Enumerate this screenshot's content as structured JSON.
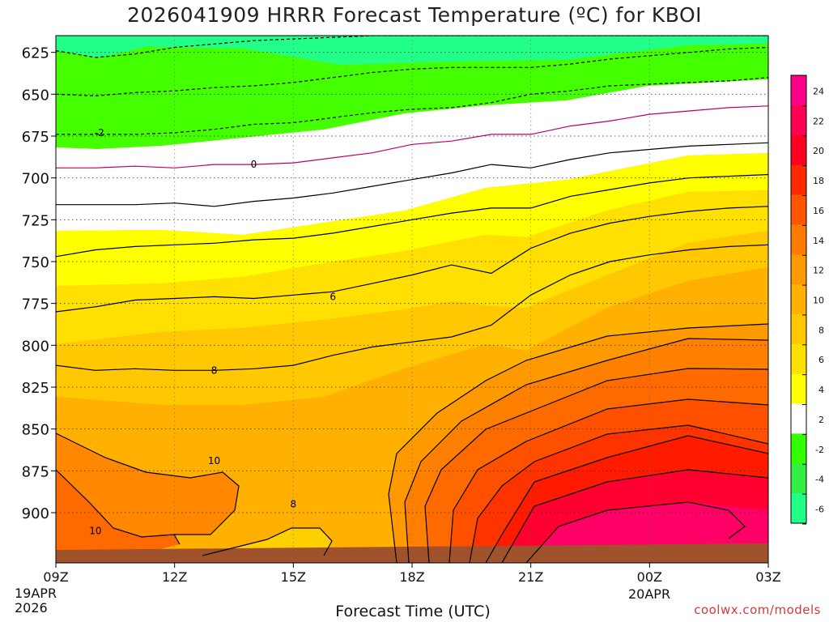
{
  "title": "2026041909 HRRR Forecast Temperature (ºC) for KBOI",
  "credit": "coolwx.com/models",
  "chart_data": {
    "type": "contour",
    "title": "2026041909 HRRR Forecast Temperature (ºC) for KBOI",
    "xlabel": "Forecast Time (UTC)",
    "ylabel": "Pressure (hPa)",
    "x_ticks": [
      "09Z",
      "12Z",
      "15Z",
      "18Z",
      "21Z",
      "00Z",
      "03Z"
    ],
    "x_hours": [
      0,
      3,
      6,
      9,
      12,
      15,
      18
    ],
    "x_date_left": [
      "19APR",
      "2026"
    ],
    "x_date_mid": "20APR",
    "y_ticks": [
      625,
      650,
      675,
      700,
      725,
      750,
      775,
      800,
      825,
      850,
      875,
      900
    ],
    "ylim": [
      615,
      930
    ],
    "colorbar_ticks": [
      24,
      22,
      20,
      18,
      16,
      14,
      12,
      10,
      8,
      6,
      4,
      2,
      -2,
      -4,
      -6
    ],
    "fill_colors": [
      "#ff0088",
      "#ff0055",
      "#ff0020",
      "#ff2a00",
      "#ff5500",
      "#ff7a00",
      "#ff9900",
      "#ffb000",
      "#ffc800",
      "#ffe000",
      "#ffff00",
      "#ffffff",
      "#33ff00",
      "#33ee44",
      "#22ff88"
    ],
    "contour_labels": [
      {
        "text": "-2",
        "hour": 1.1,
        "p": 673
      },
      {
        "text": "0",
        "hour": 5.0,
        "p": 692
      },
      {
        "text": "6",
        "hour": 7.0,
        "p": 771
      },
      {
        "text": "8",
        "hour": 4.0,
        "p": 815
      },
      {
        "text": "10",
        "hour": 4.0,
        "p": 869
      },
      {
        "text": "8",
        "hour": 6.0,
        "p": 895
      },
      {
        "text": "10",
        "hour": 1.0,
        "p": 911
      }
    ],
    "series": [
      {
        "name": "-4",
        "color": "#000000",
        "dashed": true,
        "hours": [
          0,
          1,
          2,
          3,
          4,
          5,
          6,
          7,
          8,
          9,
          10,
          11,
          12,
          13,
          14,
          15,
          16,
          17,
          18
        ],
        "p": [
          624,
          628,
          626,
          622,
          620,
          618,
          617,
          616,
          615,
          615,
          615,
          615,
          615,
          615,
          615,
          615,
          615,
          615,
          615
        ]
      },
      {
        "name": "-6",
        "color": "#000000",
        "dashed": true,
        "hours": [
          0,
          1,
          2,
          3,
          4,
          5,
          6,
          7,
          8,
          9,
          10,
          11,
          12,
          13,
          14,
          15,
          16,
          17,
          18
        ],
        "p": [
          650,
          651,
          649,
          648,
          646,
          645,
          643,
          640,
          637,
          635,
          634,
          634,
          634,
          632,
          629,
          627,
          625,
          623,
          622
        ]
      },
      {
        "name": "-8",
        "color": "#000000",
        "dashed": true,
        "hours": [
          0,
          1,
          2,
          3,
          4,
          5,
          6,
          7,
          8,
          9,
          10,
          11,
          12,
          13,
          14,
          15,
          16,
          17,
          18
        ],
        "p": [
          674,
          674,
          674,
          673,
          671,
          668,
          667,
          664,
          661,
          659,
          658,
          655,
          650,
          648,
          645,
          644,
          643,
          642,
          640
        ]
      },
      {
        "name": "0",
        "color": "#bb0066",
        "dashed": false,
        "hours": [
          0,
          1,
          2,
          3,
          4,
          5,
          6,
          7,
          8,
          9,
          10,
          11,
          12,
          13,
          14,
          15,
          16,
          17,
          18
        ],
        "p": [
          694,
          694,
          693,
          694,
          692,
          692,
          691,
          688,
          685,
          680,
          678,
          674,
          674,
          669,
          666,
          662,
          660,
          658,
          657
        ]
      },
      {
        "name": "2",
        "color": "#000000",
        "dashed": false,
        "hours": [
          0,
          1,
          2,
          3,
          4,
          5,
          6,
          7,
          8,
          9,
          10,
          11,
          12,
          13,
          14,
          15,
          16,
          17,
          18
        ],
        "p": [
          716,
          716,
          716,
          715,
          717,
          714,
          712,
          709,
          705,
          701,
          697,
          692,
          694,
          689,
          685,
          683,
          681,
          680,
          679
        ]
      },
      {
        "name": "4",
        "color": "#000000",
        "dashed": false,
        "hours": [
          0,
          1,
          2,
          3,
          4,
          5,
          6,
          7,
          8,
          9,
          10,
          11,
          12,
          13,
          14,
          15,
          16,
          17,
          18
        ],
        "p": [
          747,
          743,
          741,
          740,
          739,
          737,
          736,
          733,
          729,
          725,
          721,
          718,
          718,
          711,
          707,
          703,
          700,
          699,
          698
        ]
      },
      {
        "name": "6",
        "color": "#000000",
        "dashed": false,
        "hours": [
          0,
          1,
          2,
          3,
          4,
          5,
          6,
          7,
          8,
          9,
          10,
          11,
          12,
          13,
          14,
          15,
          16,
          17,
          18
        ],
        "p": [
          780,
          777,
          773,
          772,
          771,
          772,
          770,
          768,
          763,
          758,
          752,
          757,
          742,
          733,
          727,
          723,
          720,
          718,
          717
        ]
      },
      {
        "name": "8",
        "color": "#000000",
        "dashed": false,
        "hours": [
          0,
          1,
          2,
          3,
          4,
          5,
          6,
          7,
          8,
          9,
          10,
          11,
          12,
          13,
          14,
          15,
          16,
          17,
          18
        ],
        "p": [
          812,
          815,
          814,
          815,
          815,
          814,
          812,
          806,
          801,
          798,
          795,
          788,
          770,
          758,
          750,
          746,
          743,
          741,
          740
        ]
      }
    ],
    "ground_line_p": [
      923,
      923,
      923,
      924,
      924,
      924,
      925,
      925,
      924,
      923,
      922,
      921,
      920,
      919,
      919,
      918,
      918,
      917,
      917
    ]
  }
}
